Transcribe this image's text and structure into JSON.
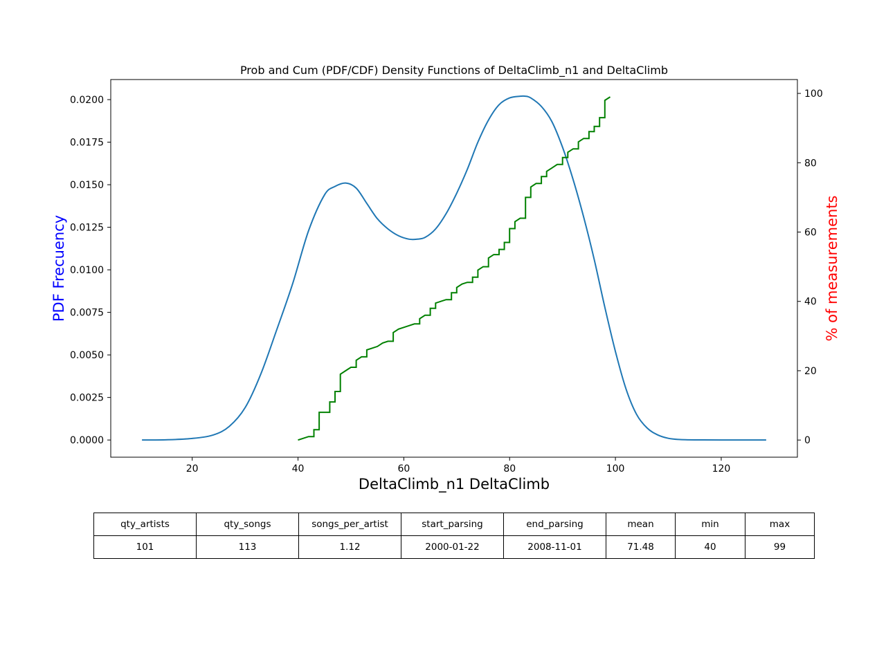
{
  "chart_data": {
    "type": "line",
    "title": "Prob and Cum (PDF/CDF) Density Functions of DeltaClimb_n1 and DeltaClimb",
    "xlabel": "DeltaClimb_n1 DeltaClimb",
    "ylabel_left": "PDF Frecuency",
    "ylabel_right": "% of measurements",
    "xlim": [
      4.6,
      134.4
    ],
    "ylim_left": [
      -0.00101,
      0.02118
    ],
    "ylim_right": [
      -4.95,
      104.0
    ],
    "x_ticks": [
      20,
      40,
      60,
      80,
      100,
      120
    ],
    "y_left_ticks": [
      "0.0000",
      "0.0025",
      "0.0050",
      "0.0075",
      "0.0100",
      "0.0125",
      "0.0150",
      "0.0175",
      "0.0200"
    ],
    "y_right_ticks": [
      0,
      20,
      40,
      60,
      80,
      100
    ],
    "grid": false,
    "colors": {
      "pdf": "#1f77b4",
      "cdf": "#008000",
      "ylabel_left": "#0000ff",
      "ylabel_right": "#ff0000"
    },
    "series": [
      {
        "axis": "left",
        "style": "smooth",
        "x": [
          10.5,
          15,
          20,
          24,
          27,
          30,
          33,
          36,
          39,
          42,
          45,
          47,
          49,
          51,
          53,
          55,
          57,
          59,
          61,
          62.5,
          64,
          66,
          68,
          70,
          72,
          74,
          76,
          78,
          80,
          82,
          83,
          84,
          86,
          88,
          90,
          92,
          94,
          96,
          98,
          100,
          102,
          104,
          106,
          108,
          110,
          112,
          115,
          120,
          128.5
        ],
        "y": [
          0.0,
          1e-05,
          9e-05,
          0.0003,
          0.0008,
          0.0019,
          0.0039,
          0.0065,
          0.0092,
          0.0123,
          0.0144,
          0.0149,
          0.0151,
          0.0148,
          0.0139,
          0.013,
          0.0124,
          0.012,
          0.0118,
          0.0118,
          0.0119,
          0.0124,
          0.0133,
          0.0145,
          0.0159,
          0.0175,
          0.0188,
          0.0197,
          0.0201,
          0.0202,
          0.0202,
          0.0201,
          0.0196,
          0.0187,
          0.0172,
          0.0153,
          0.0131,
          0.0106,
          0.0078,
          0.0052,
          0.003,
          0.0015,
          0.0007,
          0.0003,
          0.0001,
          3e-05,
          5e-06,
          0.0,
          0.0
        ]
      },
      {
        "axis": "right",
        "style": "step",
        "x": [
          40,
          42,
          43,
          44,
          46,
          47,
          48,
          49,
          50,
          51,
          52,
          53,
          54,
          55,
          56,
          57,
          58,
          59,
          60,
          61,
          62,
          63,
          64,
          65,
          66,
          67,
          68,
          69,
          70,
          71,
          72,
          73,
          74,
          75,
          76,
          77,
          78,
          79,
          80,
          81,
          82,
          83,
          84,
          85,
          86,
          87,
          88,
          89,
          90,
          91,
          92,
          93,
          94,
          95,
          96,
          97,
          98,
          99
        ],
        "y": [
          0,
          1,
          3,
          8,
          11,
          14,
          19,
          20,
          21,
          23,
          24,
          26,
          26.5,
          27,
          28,
          28.5,
          31,
          32,
          32.5,
          33,
          33.5,
          35,
          36,
          38,
          39.5,
          40,
          40.5,
          42.5,
          44,
          45,
          45.5,
          47,
          49,
          50,
          52.5,
          53.5,
          55,
          57,
          61,
          63,
          64,
          70,
          73,
          74,
          76,
          77.5,
          78.5,
          79.5,
          81.5,
          83,
          84,
          86,
          87,
          89,
          90.5,
          93,
          98,
          99
        ]
      }
    ]
  },
  "table": {
    "headers": [
      "qty_artists",
      "qty_songs",
      "songs_per_artist",
      "start_parsing",
      "end_parsing",
      "mean",
      "min",
      "max"
    ],
    "values": [
      "101",
      "113",
      "1.12",
      "2000-01-22",
      "2008-11-01",
      "71.48",
      "40",
      "99"
    ]
  }
}
